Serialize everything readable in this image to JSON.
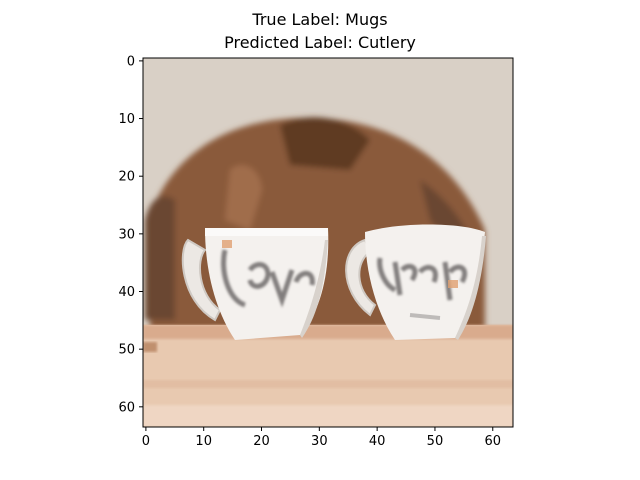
{
  "figure": {
    "title_lines": [
      "True Label: Mugs",
      "Predicted Label: Cutlery"
    ],
    "image": {
      "description_name": "mugs-photo",
      "pixel_grid": [
        64,
        64
      ]
    },
    "axes": {
      "x_ticks": [
        "0",
        "10",
        "20",
        "30",
        "40",
        "50",
        "60"
      ],
      "y_ticks": [
        "0",
        "10",
        "20",
        "30",
        "40",
        "50",
        "60"
      ],
      "x_range": [
        -0.5,
        63.5
      ],
      "y_range": [
        -0.5,
        63.5
      ]
    },
    "palette": {
      "wall": "#d9d0c6",
      "hair": "#8a5a3a",
      "hair_dark": "#5e3a24",
      "mug": "#f4f1ee",
      "mug_shadow": "#d8d2cc",
      "text_ink": "#6e6a6a",
      "table": "#e8c9b0",
      "table_dark": "#d9ab8d",
      "accent": "#e0a070"
    }
  }
}
